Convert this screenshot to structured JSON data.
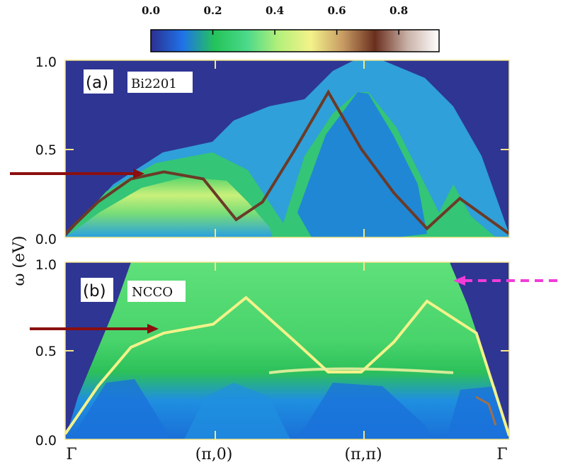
{
  "chart_data": {
    "type": "heatmap",
    "colorbar": {
      "ticks": [
        "0.0",
        "0.2",
        "0.4",
        "0.6",
        "0.8"
      ],
      "range": [
        0,
        0.93
      ],
      "colors": [
        "#2c2f91",
        "#1f73e8",
        "#24c45a",
        "#4bd98a",
        "#b5f07a",
        "#f3f28a",
        "#c79b63",
        "#6a2f1e",
        "#c9b0a6",
        "#ffffff"
      ]
    },
    "ylabel": "ω (eV)",
    "x_ticks": [
      "Γ",
      "(π,0)",
      "(π,π)",
      "Γ"
    ],
    "panels": [
      {
        "id": "a",
        "label": "(a)",
        "material": "Bi2201",
        "y_ticks": [
          "0.0",
          "0.5",
          "1.0"
        ],
        "ylim": [
          0,
          1.0
        ],
        "arrow": {
          "side": "left",
          "color": "#8b0f0f",
          "style": "solid",
          "energy": 0.36
        },
        "dispersion": [
          [
            0,
            0.02
          ],
          [
            0.1,
            0.2
          ],
          [
            0.2,
            0.33
          ],
          [
            0.3,
            0.37
          ],
          [
            0.42,
            0.33
          ],
          [
            0.52,
            0.1
          ],
          [
            0.6,
            0.2
          ],
          [
            0.7,
            0.5
          ],
          [
            0.8,
            0.82
          ],
          [
            0.9,
            0.5
          ],
          [
            1.0,
            0.25
          ],
          [
            1.1,
            0.05
          ],
          [
            1.2,
            0.22
          ],
          [
            1.35,
            0.02
          ]
        ]
      },
      {
        "id": "b",
        "label": "(b)",
        "material": "NCCO",
        "y_ticks": [
          "0.0",
          "0.5",
          "1.0"
        ],
        "ylim": [
          0,
          1.0
        ],
        "arrow_left": {
          "color": "#8b0f0f",
          "style": "solid",
          "energy": 0.61
        },
        "arrow_right": {
          "color": "#f23cd8",
          "style": "dashed",
          "energy": 0.92
        },
        "dispersion": [
          [
            0,
            0.03
          ],
          [
            0.1,
            0.3
          ],
          [
            0.2,
            0.52
          ],
          [
            0.3,
            0.6
          ],
          [
            0.45,
            0.65
          ],
          [
            0.55,
            0.8
          ],
          [
            0.7,
            0.55
          ],
          [
            0.8,
            0.38
          ],
          [
            0.9,
            0.38
          ],
          [
            1.0,
            0.55
          ],
          [
            1.1,
            0.78
          ],
          [
            1.25,
            0.6
          ],
          [
            1.35,
            0.02
          ]
        ]
      }
    ]
  }
}
